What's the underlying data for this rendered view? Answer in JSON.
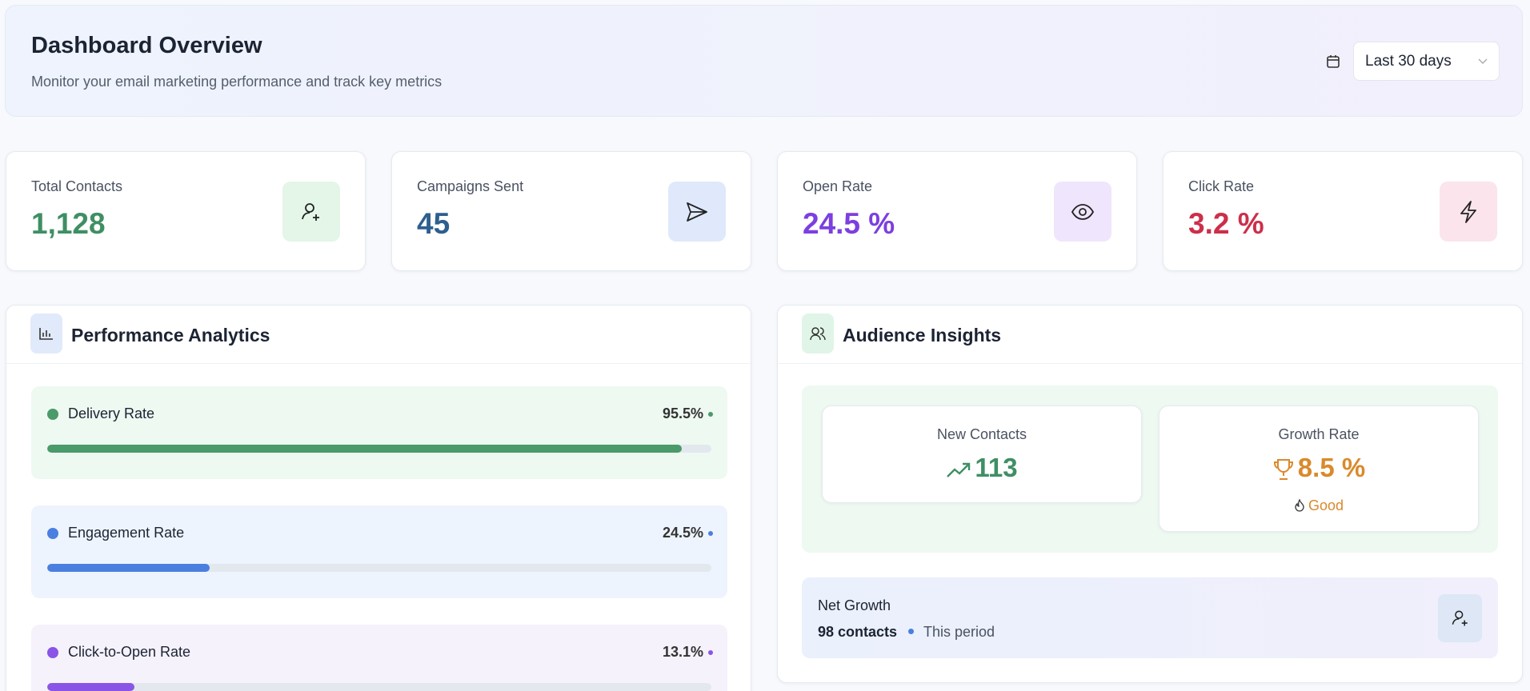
{
  "header": {
    "title": "Dashboard Overview",
    "subtitle": "Monitor your email marketing performance and track key metrics",
    "date_range": "Last 30 days"
  },
  "stats": [
    {
      "label": "Total Contacts",
      "value": "1,128"
    },
    {
      "label": "Campaigns Sent",
      "value": "45"
    },
    {
      "label": "Open Rate",
      "value": "24.5 %"
    },
    {
      "label": "Click Rate",
      "value": "3.2 %"
    }
  ],
  "performance": {
    "title": "Performance Analytics",
    "metrics": [
      {
        "label": "Delivery Rate",
        "value": 95.5,
        "value_label": "95.5%",
        "color": "#4a9a6a"
      },
      {
        "label": "Engagement Rate",
        "value": 24.5,
        "value_label": "24.5%",
        "color": "#4a7fe0"
      },
      {
        "label": "Click-to-Open Rate",
        "value": 13.1,
        "value_label": "13.1%",
        "color": "#8a55e6"
      }
    ]
  },
  "audience": {
    "title": "Audience Insights",
    "new_contacts": {
      "label": "New Contacts",
      "value": "113"
    },
    "growth_rate": {
      "label": "Growth Rate",
      "value": "8.5 %",
      "status": "Good"
    },
    "net_growth": {
      "label": "Net Growth",
      "value": "98 contacts",
      "period": "This period"
    }
  }
}
